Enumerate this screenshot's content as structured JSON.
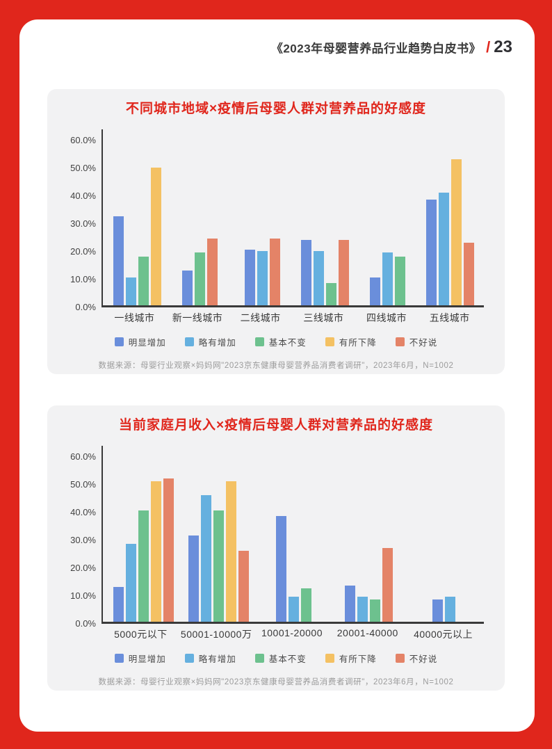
{
  "header": {
    "title": "《2023年母婴营养品行业趋势白皮书》",
    "separator": "/",
    "page_number": "23"
  },
  "colors": {
    "frame_red": "#e0261c",
    "title_red": "#e0261c",
    "panel_bg": "#f2f2f3",
    "axis": "#3a3a3a",
    "series": {
      "blue": "#6a8edb",
      "light_blue": "#65b0df",
      "green": "#6dc18e",
      "yellow": "#f4c163",
      "salmon": "#e48367"
    }
  },
  "chart_data": [
    {
      "type": "bar",
      "title": "不同城市地域×疫情后母婴人群对营养品的好感度",
      "categories": [
        "一线城市",
        "新一线城市",
        "二线城市",
        "三线城市",
        "四线城市",
        "五线城市"
      ],
      "series": [
        {
          "name": "明显增加",
          "color": "#6a8edb",
          "values": [
            32,
            12.5,
            20,
            23.5,
            10,
            38
          ]
        },
        {
          "name": "略有增加",
          "color": "#65b0df",
          "values": [
            10,
            0,
            19.5,
            19.5,
            19,
            40.5
          ]
        },
        {
          "name": "基本不变",
          "color": "#6dc18e",
          "values": [
            17.5,
            19,
            0,
            8,
            17.5,
            0
          ]
        },
        {
          "name": "有所下降",
          "color": "#f4c163",
          "values": [
            49.5,
            0,
            0,
            0,
            0,
            52.5
          ]
        },
        {
          "name": "不好说",
          "color": "#e48367",
          "values": [
            0,
            24,
            24,
            23.5,
            0,
            22.5
          ]
        }
      ],
      "xlabel": "",
      "ylabel": "",
      "ylim": [
        0,
        60
      ],
      "y_tick_values": [
        0,
        10,
        20,
        30,
        40,
        50,
        60
      ],
      "y_tick_labels": [
        "0.0%",
        "10.0%",
        "20.0%",
        "30.0%",
        "40.0%",
        "50.0%",
        "60.0%"
      ],
      "grid": false,
      "legend_position": "bottom",
      "source": "数据来源：母婴行业观察×妈妈网\"2023京东健康母婴营养品消费者调研\"，2023年6月，N=1002"
    },
    {
      "type": "bar",
      "title": "当前家庭月收入×疫情后母婴人群对营养品的好感度",
      "categories": [
        "5000元以下",
        "50001-10000万",
        "10001-20000",
        "20001-40000",
        "40000元以上"
      ],
      "series": [
        {
          "name": "明显增加",
          "color": "#6a8edb",
          "values": [
            12.5,
            31,
            38,
            13,
            8
          ]
        },
        {
          "name": "略有增加",
          "color": "#65b0df",
          "values": [
            28,
            45.5,
            9,
            9,
            9
          ]
        },
        {
          "name": "基本不变",
          "color": "#6dc18e",
          "values": [
            40,
            40,
            12,
            8,
            0
          ]
        },
        {
          "name": "有所下降",
          "color": "#f4c163",
          "values": [
            50.5,
            50.5,
            0,
            0,
            0
          ]
        },
        {
          "name": "不好说",
          "color": "#e48367",
          "values": [
            51.5,
            25.5,
            0,
            26.5,
            0
          ]
        }
      ],
      "xlabel": "",
      "ylabel": "",
      "ylim": [
        0,
        60
      ],
      "y_tick_values": [
        0,
        10,
        20,
        30,
        40,
        50,
        60
      ],
      "y_tick_labels": [
        "0.0%",
        "10.0%",
        "20.0%",
        "30.0%",
        "40.0%",
        "50.0%",
        "60.0%"
      ],
      "grid": false,
      "legend_position": "bottom",
      "source": "数据来源：母婴行业观察×妈妈网\"2023京东健康母婴营养品消费者调研\"，2023年6月，N=1002"
    }
  ]
}
